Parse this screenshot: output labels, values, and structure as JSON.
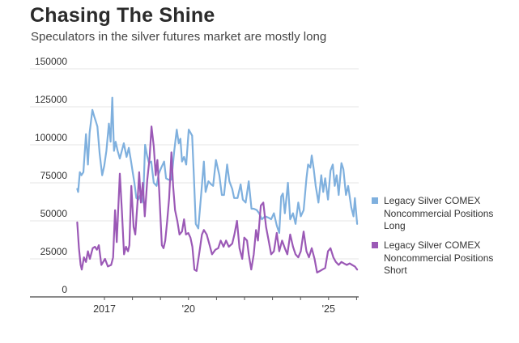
{
  "chart_data": {
    "type": "line",
    "title": "Chasing The Shine",
    "subtitle": "Speculators in the silver futures market are mostly long",
    "xlabel": "",
    "ylabel": "",
    "ylim": [
      0,
      150000
    ],
    "xlim": [
      2016.0,
      2026.05
    ],
    "grid": true,
    "legend_position": "right",
    "yticks": [
      0,
      25000,
      50000,
      75000,
      100000,
      125000,
      150000
    ],
    "ytick_labels": [
      "0",
      "25000",
      "50000",
      "75000",
      "100000",
      "125000",
      "150000"
    ],
    "xticks": [
      2017,
      2018,
      2019,
      2020,
      2021,
      2022,
      2023,
      2024,
      2025,
      2026
    ],
    "xtick_labels": [
      {
        "year": 2017,
        "label": "2017"
      },
      {
        "year": 2020,
        "label": "'20"
      },
      {
        "year": 2025,
        "label": "'25"
      }
    ],
    "series": [
      {
        "name": "Legacy Silver COMEX Noncommercial Positions Long",
        "color": "#7fb0de",
        "x": [
          2016.03,
          2016.06,
          2016.12,
          2016.18,
          2016.25,
          2016.34,
          2016.41,
          2016.47,
          2016.57,
          2016.63,
          2016.7,
          2016.75,
          2016.83,
          2016.92,
          2016.99,
          2017.07,
          2017.16,
          2017.22,
          2017.28,
          2017.34,
          2017.4,
          2017.47,
          2017.55,
          2017.69,
          2017.79,
          2017.87,
          2017.95,
          2018.01,
          2018.07,
          2018.14,
          2018.21,
          2018.28,
          2018.38,
          2018.45,
          2018.52,
          2018.59,
          2018.67,
          2018.76,
          2018.86,
          2018.94,
          2019.03,
          2019.13,
          2019.2,
          2019.29,
          2019.39,
          2019.49,
          2019.58,
          2019.65,
          2019.71,
          2019.77,
          2019.84,
          2019.92,
          2020.01,
          2020.13,
          2020.19,
          2020.26,
          2020.35,
          2020.45,
          2020.55,
          2020.61,
          2020.71,
          2020.81,
          2020.88,
          2020.98,
          2021.1,
          2021.19,
          2021.27,
          2021.38,
          2021.46,
          2021.56,
          2021.63,
          2021.75,
          2021.86,
          2021.94,
          2022.04,
          2022.15,
          2022.25,
          2022.33,
          2022.44,
          2022.52,
          2022.62,
          2022.73,
          2022.86,
          2022.95,
          2023.05,
          2023.15,
          2023.24,
          2023.31,
          2023.37,
          2023.44,
          2023.48,
          2023.55,
          2023.63,
          2023.73,
          2023.82,
          2023.92,
          2024.01,
          2024.11,
          2024.21,
          2024.27,
          2024.35,
          2024.4,
          2024.47,
          2024.54,
          2024.64,
          2024.74,
          2024.81,
          2024.88,
          2024.98,
          2025.07,
          2025.15,
          2025.22,
          2025.29,
          2025.36,
          2025.46,
          2025.53,
          2025.62,
          2025.7,
          2025.81,
          2025.89,
          2025.94,
          2026.02
        ],
        "values": [
          71000,
          69000,
          82000,
          80000,
          82000,
          107000,
          87000,
          108000,
          123000,
          119000,
          115000,
          112000,
          94000,
          80000,
          86000,
          96000,
          114000,
          102000,
          131000,
          96000,
          102000,
          96000,
          91000,
          101000,
          92000,
          98000,
          89000,
          82000,
          75000,
          65000,
          64000,
          67000,
          62000,
          100000,
          93000,
          88000,
          89000,
          75000,
          73000,
          81000,
          85000,
          89000,
          78000,
          77000,
          77000,
          96000,
          110000,
          101000,
          104000,
          89000,
          92000,
          87000,
          110000,
          106000,
          80000,
          48000,
          45000,
          67000,
          89000,
          69000,
          76000,
          74000,
          73000,
          90000,
          80000,
          67000,
          67000,
          87000,
          76000,
          71000,
          65000,
          65000,
          74000,
          64000,
          62000,
          76000,
          58000,
          58000,
          57000,
          55000,
          51000,
          53000,
          52000,
          51000,
          55000,
          47000,
          42000,
          66000,
          68000,
          55000,
          62000,
          75000,
          51000,
          55000,
          48000,
          62000,
          53000,
          57000,
          78000,
          87000,
          85000,
          93000,
          84000,
          73000,
          62000,
          80000,
          69000,
          78000,
          64000,
          83000,
          87000,
          73000,
          80000,
          67000,
          88000,
          84000,
          67000,
          73000,
          59000,
          53000,
          65000,
          48000
        ]
      },
      {
        "name": "Legacy Silver COMEX Noncommercial Positions Short",
        "color": "#9b59b6",
        "x": [
          2016.03,
          2016.09,
          2016.15,
          2016.19,
          2016.27,
          2016.34,
          2016.41,
          2016.48,
          2016.58,
          2016.66,
          2016.73,
          2016.8,
          2016.89,
          2017.02,
          2017.12,
          2017.24,
          2017.31,
          2017.38,
          2017.44,
          2017.55,
          2017.62,
          2017.7,
          2017.77,
          2017.84,
          2017.89,
          2017.96,
          2018.04,
          2018.1,
          2018.18,
          2018.24,
          2018.3,
          2018.37,
          2018.44,
          2018.53,
          2018.61,
          2018.68,
          2018.76,
          2018.83,
          2018.89,
          2018.95,
          2019.05,
          2019.11,
          2019.17,
          2019.24,
          2019.31,
          2019.39,
          2019.45,
          2019.52,
          2019.6,
          2019.68,
          2019.77,
          2019.84,
          2019.91,
          2019.99,
          2020.07,
          2020.14,
          2020.21,
          2020.29,
          2020.38,
          2020.48,
          2020.55,
          2020.65,
          2020.74,
          2020.84,
          2020.96,
          2021.06,
          2021.15,
          2021.25,
          2021.34,
          2021.44,
          2021.56,
          2021.64,
          2021.73,
          2021.82,
          2021.92,
          2021.99,
          2022.09,
          2022.15,
          2022.24,
          2022.33,
          2022.41,
          2022.48,
          2022.58,
          2022.67,
          2022.77,
          2022.86,
          2022.95,
          2023.05,
          2023.15,
          2023.24,
          2023.34,
          2023.44,
          2023.53,
          2023.63,
          2023.73,
          2023.82,
          2023.92,
          2024.01,
          2024.11,
          2024.21,
          2024.3,
          2024.4,
          2024.5,
          2024.59,
          2024.69,
          2024.78,
          2024.88,
          2024.98,
          2025.07,
          2025.17,
          2025.26,
          2025.36,
          2025.46,
          2025.55,
          2025.65,
          2025.75,
          2025.84,
          2025.94,
          2026.02
        ],
        "values": [
          49000,
          32000,
          21000,
          18000,
          26000,
          23000,
          30000,
          25000,
          32000,
          33000,
          31000,
          34000,
          21000,
          25000,
          20000,
          21000,
          26000,
          57000,
          36000,
          81000,
          57000,
          28000,
          33000,
          30000,
          34000,
          73000,
          46000,
          41000,
          62000,
          82000,
          62000,
          75000,
          53000,
          77000,
          91000,
          112000,
          99000,
          80000,
          90000,
          71000,
          34000,
          32000,
          37000,
          50000,
          65000,
          95000,
          73000,
          57000,
          50000,
          41000,
          43000,
          51000,
          41000,
          42000,
          39000,
          33000,
          18000,
          17000,
          28000,
          41000,
          44000,
          41000,
          35000,
          28000,
          31000,
          32000,
          37000,
          33000,
          37000,
          33000,
          35000,
          41000,
          50000,
          32000,
          25000,
          39000,
          37000,
          28000,
          18000,
          28000,
          44000,
          37000,
          60000,
          62000,
          46000,
          37000,
          28000,
          30000,
          42000,
          30000,
          37000,
          32000,
          28000,
          41000,
          33000,
          28000,
          26000,
          30000,
          43000,
          30000,
          26000,
          32000,
          25000,
          16000,
          17000,
          18000,
          19000,
          30000,
          32000,
          26000,
          23000,
          21000,
          23000,
          22000,
          21000,
          22000,
          21000,
          20000,
          18000
        ]
      }
    ]
  },
  "legend": [
    {
      "line1": "Legacy Silver COMEX",
      "line2": "Noncommercial Positions",
      "line3": "Long",
      "color": "#7fb0de"
    },
    {
      "line1": "Legacy Silver COMEX",
      "line2": "Noncommercial Positions",
      "line3": "Short",
      "color": "#9b59b6"
    }
  ]
}
